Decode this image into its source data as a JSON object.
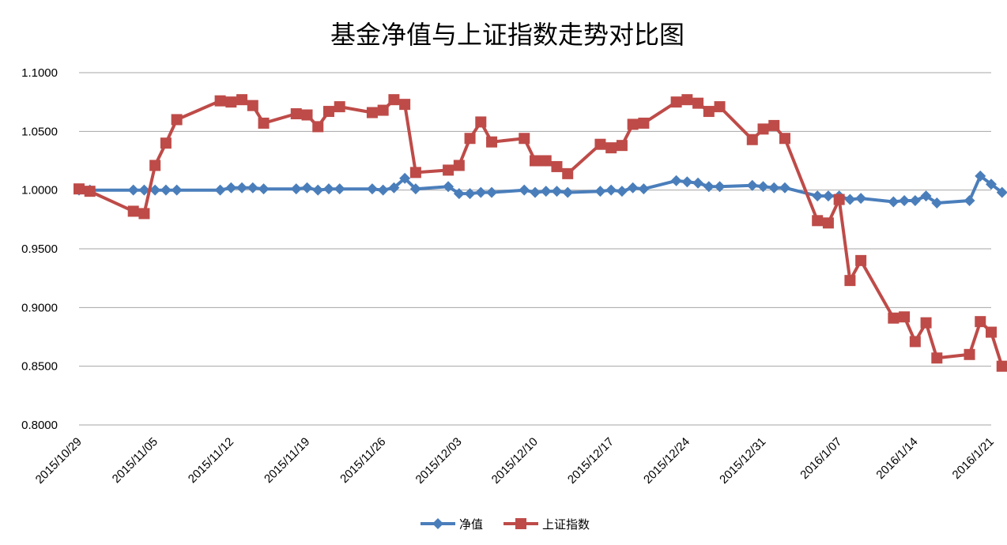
{
  "chart_data": {
    "type": "line",
    "title": "基金净值与上证指数走势对比图",
    "xlabel": "",
    "ylabel": "",
    "ylim": [
      0.8,
      1.1
    ],
    "yticks": [
      "0.8000",
      "0.8500",
      "0.9000",
      "0.9500",
      "1.0000",
      "1.0500",
      "1.1000"
    ],
    "xlim": [
      "2015/10/29",
      "2016/1/21"
    ],
    "xticks": [
      "2015/10/29",
      "2015/11/05",
      "2015/11/12",
      "2015/11/19",
      "2015/11/26",
      "2015/12/03",
      "2015/12/10",
      "2015/12/17",
      "2015/12/24",
      "2015/12/31",
      "2016/1/07",
      "2016/1/14",
      "2016/1/21"
    ],
    "grid": true,
    "legend_position": "bottom",
    "series": [
      {
        "name": "净值",
        "color": "#4a7ebb",
        "marker": "diamond",
        "points": [
          [
            "2015/10/29",
            1.0
          ],
          [
            "2015/10/30",
            1.0
          ],
          [
            "2015/11/03",
            1.0
          ],
          [
            "2015/11/04",
            1.0
          ],
          [
            "2015/11/05",
            1.0
          ],
          [
            "2015/11/06",
            1.0
          ],
          [
            "2015/11/07",
            1.0
          ],
          [
            "2015/11/11",
            1.0
          ],
          [
            "2015/11/12",
            1.002
          ],
          [
            "2015/11/13",
            1.002
          ],
          [
            "2015/11/14",
            1.002
          ],
          [
            "2015/11/15",
            1.001
          ],
          [
            "2015/11/18",
            1.001
          ],
          [
            "2015/11/19",
            1.002
          ],
          [
            "2015/11/20",
            1.0
          ],
          [
            "2015/11/21",
            1.001
          ],
          [
            "2015/11/22",
            1.001
          ],
          [
            "2015/11/25",
            1.001
          ],
          [
            "2015/11/26",
            1.0
          ],
          [
            "2015/11/27",
            1.002
          ],
          [
            "2015/11/28",
            1.01
          ],
          [
            "2015/11/29",
            1.001
          ],
          [
            "2015/12/02",
            1.003
          ],
          [
            "2015/12/03",
            0.997
          ],
          [
            "2015/12/04",
            0.997
          ],
          [
            "2015/12/05",
            0.998
          ],
          [
            "2015/12/06",
            0.998
          ],
          [
            "2015/12/09",
            1.0
          ],
          [
            "2015/12/10",
            0.998
          ],
          [
            "2015/12/11",
            0.999
          ],
          [
            "2015/12/12",
            0.999
          ],
          [
            "2015/12/13",
            0.998
          ],
          [
            "2015/12/16",
            0.999
          ],
          [
            "2015/12/17",
            1.0
          ],
          [
            "2015/12/18",
            0.999
          ],
          [
            "2015/12/19",
            1.002
          ],
          [
            "2015/12/20",
            1.001
          ],
          [
            "2015/12/23",
            1.008
          ],
          [
            "2015/12/24",
            1.007
          ],
          [
            "2015/12/25",
            1.006
          ],
          [
            "2015/12/26",
            1.003
          ],
          [
            "2015/12/27",
            1.003
          ],
          [
            "2015/12/30",
            1.004
          ],
          [
            "2015/12/31",
            1.003
          ],
          [
            "2016/1/01",
            1.002
          ],
          [
            "2016/1/02",
            1.002
          ],
          [
            "2016/1/05",
            0.995
          ],
          [
            "2016/1/06",
            0.995
          ],
          [
            "2016/1/07",
            0.995
          ],
          [
            "2016/1/08",
            0.992
          ],
          [
            "2016/1/09",
            0.993
          ],
          [
            "2016/1/12",
            0.99
          ],
          [
            "2016/1/13",
            0.991
          ],
          [
            "2016/1/14",
            0.991
          ],
          [
            "2016/1/15",
            0.995
          ],
          [
            "2016/1/16",
            0.989
          ],
          [
            "2016/1/19",
            0.991
          ],
          [
            "2016/1/20",
            1.012
          ],
          [
            "2016/1/21",
            1.005
          ],
          [
            "2016/1/22",
            0.998
          ]
        ]
      },
      {
        "name": "上证指数",
        "color": "#be4b48",
        "marker": "square",
        "points": [
          [
            "2015/10/29",
            1.001
          ],
          [
            "2015/10/30",
            0.999
          ],
          [
            "2015/11/03",
            0.982
          ],
          [
            "2015/11/04",
            0.98
          ],
          [
            "2015/11/05",
            1.021
          ],
          [
            "2015/11/06",
            1.04
          ],
          [
            "2015/11/07",
            1.06
          ],
          [
            "2015/11/11",
            1.076
          ],
          [
            "2015/11/12",
            1.075
          ],
          [
            "2015/11/13",
            1.077
          ],
          [
            "2015/11/14",
            1.072
          ],
          [
            "2015/11/15",
            1.057
          ],
          [
            "2015/11/18",
            1.065
          ],
          [
            "2015/11/19",
            1.064
          ],
          [
            "2015/11/20",
            1.054
          ],
          [
            "2015/11/21",
            1.067
          ],
          [
            "2015/11/22",
            1.071
          ],
          [
            "2015/11/25",
            1.066
          ],
          [
            "2015/11/26",
            1.068
          ],
          [
            "2015/11/27",
            1.077
          ],
          [
            "2015/11/28",
            1.073
          ],
          [
            "2015/11/29",
            1.015
          ],
          [
            "2015/12/02",
            1.017
          ],
          [
            "2015/12/03",
            1.021
          ],
          [
            "2015/12/04",
            1.044
          ],
          [
            "2015/12/05",
            1.058
          ],
          [
            "2015/12/06",
            1.041
          ],
          [
            "2015/12/09",
            1.044
          ],
          [
            "2015/12/10",
            1.025
          ],
          [
            "2015/12/11",
            1.025
          ],
          [
            "2015/12/12",
            1.02
          ],
          [
            "2015/12/13",
            1.014
          ],
          [
            "2015/12/16",
            1.039
          ],
          [
            "2015/12/17",
            1.036
          ],
          [
            "2015/12/18",
            1.038
          ],
          [
            "2015/12/19",
            1.056
          ],
          [
            "2015/12/20",
            1.057
          ],
          [
            "2015/12/23",
            1.075
          ],
          [
            "2015/12/24",
            1.077
          ],
          [
            "2015/12/25",
            1.074
          ],
          [
            "2015/12/26",
            1.067
          ],
          [
            "2015/12/27",
            1.071
          ],
          [
            "2015/12/30",
            1.043
          ],
          [
            "2015/12/31",
            1.052
          ],
          [
            "2016/1/01",
            1.055
          ],
          [
            "2016/1/02",
            1.044
          ],
          [
            "2016/1/05",
            0.974
          ],
          [
            "2016/1/06",
            0.972
          ],
          [
            "2016/1/07",
            0.992
          ],
          [
            "2016/1/08",
            0.923
          ],
          [
            "2016/1/09",
            0.94
          ],
          [
            "2016/1/12",
            0.891
          ],
          [
            "2016/1/13",
            0.892
          ],
          [
            "2016/1/14",
            0.871
          ],
          [
            "2016/1/15",
            0.887
          ],
          [
            "2016/1/16",
            0.857
          ],
          [
            "2016/1/19",
            0.86
          ],
          [
            "2016/1/20",
            0.888
          ],
          [
            "2016/1/21",
            0.879
          ],
          [
            "2016/1/22",
            0.85
          ]
        ]
      }
    ]
  }
}
